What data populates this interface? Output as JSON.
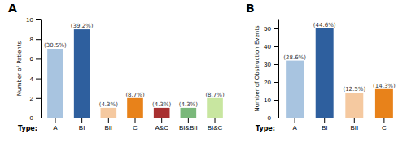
{
  "chart_data": [
    {
      "type": "bar",
      "title": "A",
      "categories": [
        "A",
        "BI",
        "BII",
        "C",
        "A&C",
        "BI&BII",
        "BI&C"
      ],
      "values": [
        7,
        9,
        1,
        2,
        1,
        1,
        2
      ],
      "annotations": [
        "(30.5%)",
        "(39.2%)",
        "(4.3%)",
        "(8.7%)",
        "(4.3%)",
        "(4.3%)",
        "(8.7%)"
      ],
      "colors": [
        "#a8c4e0",
        "#2e5f9e",
        "#f5c9a0",
        "#e8821a",
        "#a83030",
        "#7ab87a",
        "#c8e6a0"
      ],
      "xlabel": "Type:",
      "ylabel": "Number of Patients",
      "ylim": [
        0,
        10
      ],
      "yticks": [
        0,
        2,
        4,
        6,
        8,
        10
      ]
    },
    {
      "type": "bar",
      "title": "B",
      "categories": [
        "A",
        "BI",
        "BII",
        "C"
      ],
      "values": [
        32,
        50,
        14,
        16
      ],
      "annotations": [
        "(28.6%)",
        "(44.6%)",
        "(12.5%)",
        "(14.3%)"
      ],
      "colors": [
        "#a8c4e0",
        "#2e5f9e",
        "#f5c9a0",
        "#e8821a"
      ],
      "xlabel": "Type:",
      "ylabel": "Number of Obstruction Events",
      "ylim": [
        0,
        55
      ],
      "yticks": [
        0,
        10,
        20,
        30,
        40,
        50
      ]
    }
  ]
}
